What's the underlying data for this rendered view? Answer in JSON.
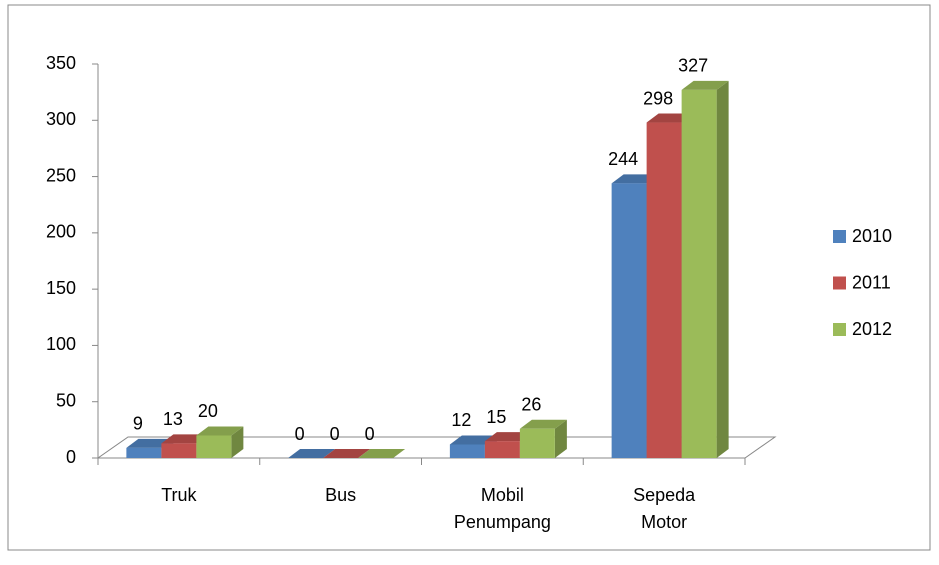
{
  "chart_data": {
    "type": "bar3d",
    "categories": [
      "Truk",
      "Bus",
      "Mobil Penumpang",
      "Sepeda Motor"
    ],
    "series": [
      {
        "name": "2010",
        "color": "#4f81bd",
        "values": [
          9,
          0,
          12,
          244
        ]
      },
      {
        "name": "2011",
        "color": "#c0504d",
        "values": [
          13,
          0,
          15,
          298
        ]
      },
      {
        "name": "2012",
        "color": "#9bbb59",
        "values": [
          20,
          0,
          26,
          327
        ]
      }
    ],
    "ylim": [
      0,
      350
    ],
    "yticks": [
      0,
      50,
      100,
      150,
      200,
      250,
      300,
      350
    ],
    "grid": false,
    "legend": "right"
  }
}
